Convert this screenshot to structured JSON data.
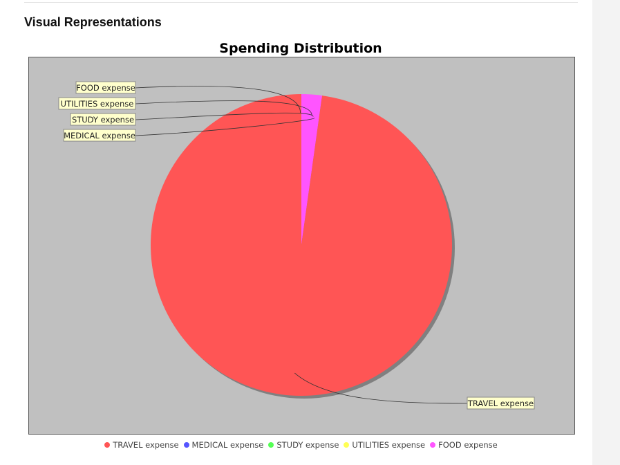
{
  "page": {
    "section_title": "Visual Representations"
  },
  "chart_data": {
    "type": "pie",
    "title": "Spending Distribution",
    "categories": [
      "TRAVEL expense",
      "MEDICAL expense",
      "STUDY expense",
      "UTILITIES expense",
      "FOOD expense"
    ],
    "values": [
      97.8,
      0.0,
      0.0,
      0.0,
      2.2
    ],
    "colors": [
      "#ff5555",
      "#5555ff",
      "#55ff55",
      "#ffff55",
      "#ff55ff"
    ],
    "plot_background": "#c0c0c0",
    "label_background": "#ffffcc",
    "legend_position": "bottom"
  }
}
